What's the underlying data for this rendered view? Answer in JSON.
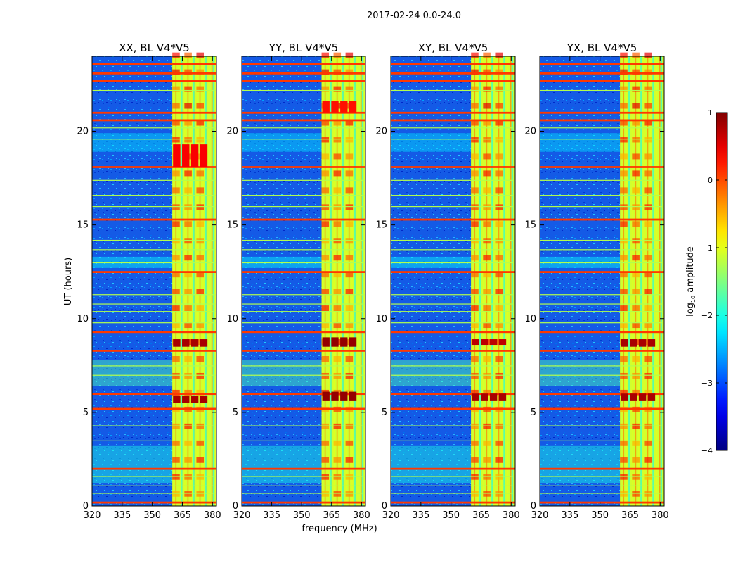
{
  "chart_data": {
    "type": "heatmap",
    "suptitle": "2017-02-24 0.0-24.0",
    "xlabel": "frequency (MHz)",
    "ylabel": "UT (hours)",
    "xlim": [
      320,
      382
    ],
    "ylim": [
      0,
      24
    ],
    "xticks": [
      320,
      335,
      350,
      365,
      380
    ],
    "yticks": [
      0,
      5,
      10,
      15,
      20
    ],
    "xtick_labels": [
      "320",
      "335",
      "350",
      "365",
      "380"
    ],
    "ytick_labels": [
      "0",
      "5",
      "10",
      "15",
      "20"
    ],
    "colorbar": {
      "label_prefix": "log",
      "label_sub": "10",
      "label_suffix": " amplitude",
      "range": [
        -4,
        1
      ],
      "ticks": [
        1,
        0,
        -1,
        -2,
        -3,
        -4
      ],
      "tick_labels": [
        "1",
        "0",
        "−1",
        "−2",
        "−3",
        "−4"
      ],
      "colormap": "jet"
    },
    "panels": [
      {
        "title": "XX, BL V4*V5",
        "rfi_band_mhz": [
          360,
          382
        ],
        "bright_blocks": [
          {
            "t0": 18.1,
            "t1": 19.3,
            "f0": 360,
            "f1": 378,
            "level": 0.4
          },
          {
            "t0": 8.5,
            "t1": 8.9,
            "f0": 360,
            "f1": 378,
            "level": 0.8
          },
          {
            "t0": 5.5,
            "t1": 5.9,
            "f0": 360,
            "f1": 378,
            "level": 0.8
          }
        ]
      },
      {
        "title": "YY, BL V4*V5",
        "rfi_band_mhz": [
          360,
          382
        ],
        "bright_blocks": [
          {
            "t0": 21.0,
            "t1": 21.6,
            "f0": 360,
            "f1": 378,
            "level": 0.3
          },
          {
            "t0": 8.5,
            "t1": 9.0,
            "f0": 360,
            "f1": 378,
            "level": 0.9
          },
          {
            "t0": 5.6,
            "t1": 6.1,
            "f0": 360,
            "f1": 378,
            "level": 0.9
          }
        ]
      },
      {
        "title": "XY, BL V4*V5",
        "rfi_band_mhz": [
          360,
          382
        ],
        "bright_blocks": [
          {
            "t0": 8.6,
            "t1": 8.9,
            "f0": 360,
            "f1": 378,
            "level": 0.7
          },
          {
            "t0": 5.6,
            "t1": 6.0,
            "f0": 360,
            "f1": 378,
            "level": 0.8
          }
        ]
      },
      {
        "title": "YX, BL V4*V5",
        "rfi_band_mhz": [
          360,
          382
        ],
        "bright_blocks": [
          {
            "t0": 8.5,
            "t1": 8.9,
            "f0": 360,
            "f1": 378,
            "level": 0.8
          },
          {
            "t0": 5.6,
            "t1": 6.0,
            "f0": 360,
            "f1": 378,
            "level": 0.8
          }
        ]
      }
    ],
    "rfi_strong_times_hours": [
      23.6,
      23.1,
      22.7,
      21.0,
      20.6,
      18.1,
      15.3,
      12.5,
      9.3,
      8.3,
      6.0,
      5.2,
      2.0,
      0.2
    ],
    "rfi_weak_times_hours": [
      22.2,
      20.2,
      19.6,
      17.4,
      16.6,
      16.0,
      14.2,
      13.7,
      13.0,
      11.3,
      10.8,
      10.4,
      9.8,
      7.5,
      7.0,
      4.3,
      3.5,
      1.6,
      1.1,
      0.7
    ],
    "rfi_band_frequencies_mhz": [
      364.5,
      370.5,
      376.5,
      380.5
    ]
  }
}
